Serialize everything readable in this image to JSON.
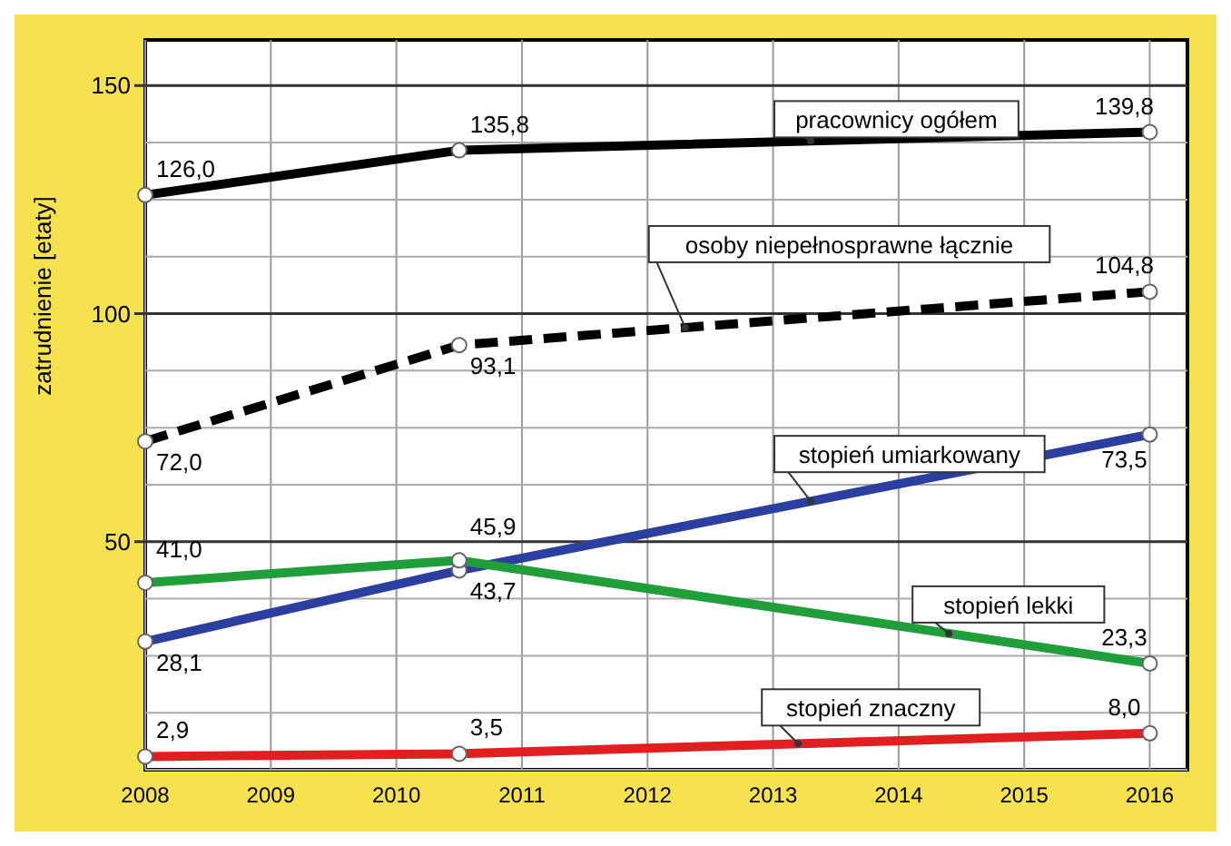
{
  "chart_data": {
    "type": "line",
    "ylabel": "zatrudnienie [etaty]",
    "x": [
      2008,
      2010.5,
      2016
    ],
    "xlim": [
      2008,
      2016.3
    ],
    "xticks": [
      2008,
      2009,
      2010,
      2011,
      2012,
      2013,
      2014,
      2015,
      2016
    ],
    "ylim": [
      0,
      160
    ],
    "yticks": [
      50,
      100,
      150
    ],
    "grid": true,
    "marker": "circle",
    "series": [
      {
        "name": "pracownicy ogółem",
        "color": "#000000",
        "values": [
          126.0,
          135.8,
          139.8
        ],
        "value_labels": [
          "126,0",
          "135,8",
          "139,8"
        ]
      },
      {
        "name": "osoby niepełnosprawne łącznie",
        "color": "#000000",
        "line_style": "dashed",
        "values": [
          72.0,
          93.1,
          104.8
        ],
        "value_labels": [
          "72,0",
          "93,1",
          "104,8"
        ]
      },
      {
        "name": "stopień umiarkowany",
        "color": "#2a3f9e",
        "values": [
          28.1,
          43.7,
          73.5
        ],
        "value_labels": [
          "28,1",
          "43,7",
          "73,5"
        ]
      },
      {
        "name": "stopień lekki",
        "color": "#1f9e3a",
        "values": [
          41.0,
          45.9,
          23.3
        ],
        "value_labels": [
          "41,0",
          "45,9",
          "23,3"
        ]
      },
      {
        "name": "stopień znaczny",
        "color": "#e02020",
        "values": [
          2.9,
          3.5,
          8.0
        ],
        "value_labels": [
          "2,9",
          "3,5",
          "8,0"
        ]
      }
    ]
  }
}
